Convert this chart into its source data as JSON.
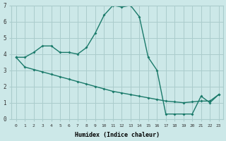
{
  "xlabel": "Humidex (Indice chaleur)",
  "bg_color": "#cce8e8",
  "grid_color": "#aacccc",
  "line_color": "#1a7a6a",
  "line1_x": [
    0,
    1,
    2,
    3,
    4,
    5,
    6,
    7,
    8,
    9,
    10,
    11,
    12,
    13,
    14,
    15,
    16,
    17,
    18,
    19,
    20,
    21,
    22,
    23
  ],
  "line1_y": [
    3.8,
    3.8,
    4.1,
    4.5,
    4.5,
    4.1,
    4.1,
    4.0,
    4.4,
    5.3,
    6.4,
    7.0,
    6.9,
    7.0,
    6.3,
    3.8,
    3.0,
    0.3,
    0.3,
    0.3,
    0.3,
    1.4,
    1.0,
    1.5
  ],
  "line2_x": [
    0,
    1,
    2,
    3,
    4,
    5,
    6,
    7,
    8,
    9,
    10,
    11,
    12,
    13,
    14,
    15,
    16,
    17,
    18,
    19,
    20,
    21,
    22,
    23
  ],
  "line2_y": [
    3.8,
    3.2,
    3.05,
    2.9,
    2.75,
    2.6,
    2.45,
    2.3,
    2.15,
    2.0,
    1.85,
    1.7,
    1.6,
    1.5,
    1.4,
    1.3,
    1.2,
    1.1,
    1.05,
    1.0,
    1.05,
    1.1,
    1.1,
    1.5
  ],
  "ylim": [
    0,
    7
  ],
  "xlim_min": -0.5,
  "xlim_max": 23.5
}
